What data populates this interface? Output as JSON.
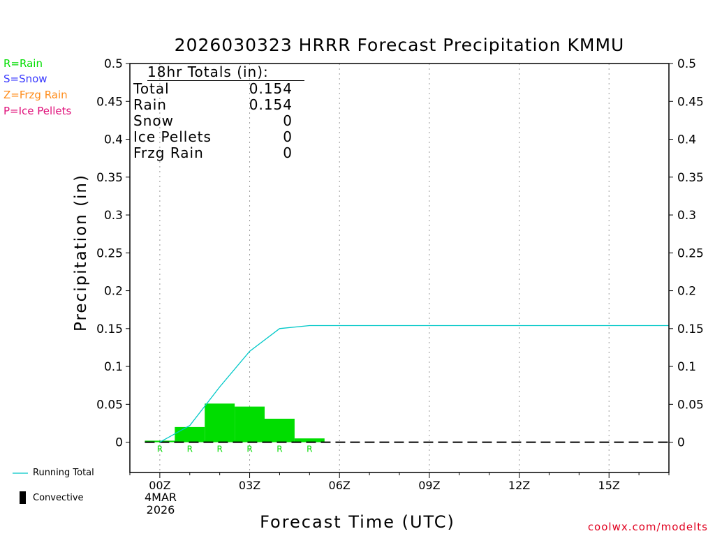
{
  "chart_data": {
    "type": "bar",
    "title": "2026030323 HRRR Forecast Precipitation KMMU",
    "xlabel": "Forecast Time (UTC)",
    "ylabel": "Precipitation (in)",
    "ylim": [
      -0.04,
      0.5
    ],
    "yticks": [
      0,
      0.05,
      0.1,
      0.15,
      0.2,
      0.25,
      0.3,
      0.35,
      0.4,
      0.45,
      0.5
    ],
    "ytick_labels": [
      "0",
      "0.05",
      "0.1",
      "0.15",
      "0.2",
      "0.25",
      "0.3",
      "0.35",
      "0.4",
      "0.45",
      "0.5"
    ],
    "xlim_hours": [
      -1,
      17
    ],
    "xticks": [
      {
        "hour": 0,
        "label": "00Z"
      },
      {
        "hour": 3,
        "label": "03Z"
      },
      {
        "hour": 6,
        "label": "06Z"
      },
      {
        "hour": 9,
        "label": "09Z"
      },
      {
        "hour": 12,
        "label": "12Z"
      },
      {
        "hour": 15,
        "label": "15Z"
      }
    ],
    "date_label_line1": "4MAR",
    "date_label_line2": "2026",
    "bars": [
      {
        "start": -0.5,
        "end": 0.5,
        "value": 0.002,
        "type": "R"
      },
      {
        "start": 0.5,
        "end": 1.5,
        "value": 0.02,
        "type": "R"
      },
      {
        "start": 1.5,
        "end": 2.5,
        "value": 0.051,
        "type": "R"
      },
      {
        "start": 2.5,
        "end": 3.5,
        "value": 0.047,
        "type": "R"
      },
      {
        "start": 3.5,
        "end": 4.5,
        "value": 0.031,
        "type": "R"
      },
      {
        "start": 4.5,
        "end": 5.5,
        "value": 0.005,
        "type": "R"
      }
    ],
    "running_total": {
      "x": [
        0,
        1,
        2,
        3,
        4,
        5,
        6,
        7,
        8,
        9,
        10,
        11,
        12,
        13,
        14,
        15,
        16,
        17
      ],
      "y": [
        0.0,
        0.022,
        0.073,
        0.12,
        0.15,
        0.154,
        0.154,
        0.154,
        0.154,
        0.154,
        0.154,
        0.154,
        0.154,
        0.154,
        0.154,
        0.154,
        0.154,
        0.154
      ]
    },
    "precip_type_markers": [
      {
        "hour": 0,
        "label": "R"
      },
      {
        "hour": 1,
        "label": "R"
      },
      {
        "hour": 2,
        "label": "R"
      },
      {
        "hour": 3,
        "label": "R"
      },
      {
        "hour": 4,
        "label": "R"
      },
      {
        "hour": 5,
        "label": "R"
      }
    ]
  },
  "legend": {
    "rain": "R=Rain",
    "snow": "S=Snow",
    "frzg_rain": "Z=Frzg Rain",
    "ice_pellets": "P=Ice Pellets",
    "running_total": "Running Total",
    "convective": "Convective"
  },
  "totals": {
    "header": "18hr Totals (in):",
    "rows": [
      {
        "label": "Total",
        "value": "0.154"
      },
      {
        "label": "Rain",
        "value": "0.154"
      },
      {
        "label": "Snow",
        "value": "0"
      },
      {
        "label": "Ice Pellets",
        "value": "0"
      },
      {
        "label": "Frzg Rain",
        "value": "0"
      }
    ]
  },
  "watermark": "coolwx.com/modelts",
  "colors": {
    "rain": "#00dd00",
    "snow": "#3a3aff",
    "frzg_rain": "#ff8c1a",
    "ice_pellets": "#e0107a",
    "running_total": "#00c8c8",
    "watermark": "#e0001f"
  }
}
